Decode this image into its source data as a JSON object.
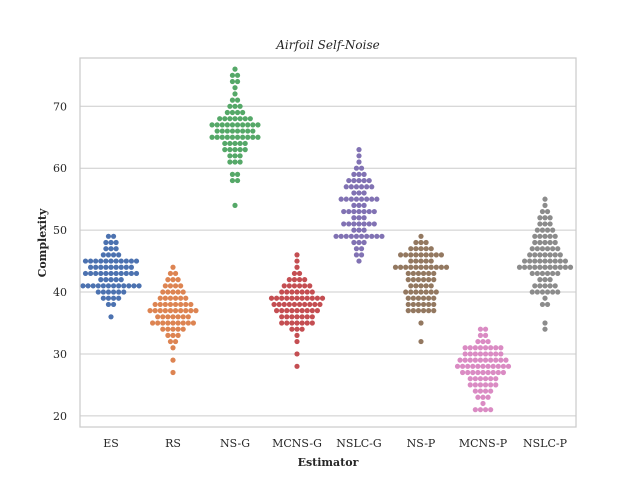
{
  "chart_data": {
    "type": "scatter",
    "subtype": "swarm",
    "title": "Airfoil Self-Noise",
    "xlabel": "Estimator",
    "ylabel": "Complexity",
    "categories": [
      "ES",
      "RS",
      "NS-G",
      "MCNS-G",
      "NSLC-G",
      "NS-P",
      "MCNS-P",
      "NSLC-P"
    ],
    "yticks": [
      20,
      30,
      40,
      50,
      60,
      70
    ],
    "ylim": [
      18.2,
      77.8
    ],
    "grid": "y",
    "legend": "none",
    "colors": [
      "#4c72b0",
      "#dd8452",
      "#55a868",
      "#c44e52",
      "#8172b3",
      "#937860",
      "#da8bc3",
      "#8c8c8c"
    ],
    "series": [
      {
        "category": "ES",
        "values": [
          36,
          38,
          38,
          39,
          39,
          39,
          39,
          40,
          40,
          40,
          40,
          40,
          40,
          41,
          41,
          41,
          41,
          41,
          41,
          41,
          41,
          41,
          41,
          41,
          41,
          42,
          42,
          42,
          42,
          42,
          43,
          43,
          43,
          43,
          43,
          43,
          43,
          43,
          43,
          43,
          43,
          44,
          44,
          44,
          44,
          44,
          44,
          44,
          44,
          44,
          45,
          45,
          45,
          45,
          45,
          45,
          45,
          45,
          45,
          45,
          45,
          46,
          46,
          46,
          46,
          47,
          47,
          47,
          48,
          48,
          48,
          49,
          49
        ]
      },
      {
        "category": "RS",
        "values": [
          27,
          29,
          31,
          32,
          32,
          33,
          33,
          33,
          34,
          34,
          34,
          34,
          34,
          35,
          35,
          35,
          35,
          35,
          35,
          35,
          35,
          35,
          36,
          36,
          36,
          36,
          36,
          36,
          36,
          37,
          37,
          37,
          37,
          37,
          37,
          37,
          37,
          37,
          37,
          38,
          38,
          38,
          38,
          38,
          38,
          38,
          38,
          39,
          39,
          39,
          39,
          39,
          39,
          40,
          40,
          40,
          40,
          40,
          41,
          41,
          41,
          41,
          42,
          42,
          42,
          43,
          43,
          44
        ]
      },
      {
        "category": "NS-G",
        "values": [
          54,
          58,
          58,
          59,
          59,
          61,
          61,
          61,
          62,
          62,
          62,
          63,
          63,
          63,
          63,
          63,
          64,
          64,
          64,
          64,
          64,
          65,
          65,
          65,
          65,
          65,
          65,
          65,
          65,
          65,
          65,
          66,
          66,
          66,
          66,
          66,
          66,
          66,
          66,
          67,
          67,
          67,
          67,
          67,
          67,
          67,
          67,
          67,
          67,
          68,
          68,
          68,
          68,
          68,
          68,
          68,
          69,
          69,
          69,
          69,
          70,
          70,
          70,
          71,
          71,
          72,
          73,
          74,
          74,
          75,
          75,
          76
        ]
      },
      {
        "category": "MCNS-G",
        "values": [
          28,
          30,
          32,
          33,
          34,
          34,
          34,
          35,
          35,
          35,
          35,
          35,
          35,
          35,
          36,
          36,
          36,
          36,
          36,
          36,
          36,
          37,
          37,
          37,
          37,
          37,
          37,
          37,
          37,
          37,
          38,
          38,
          38,
          38,
          38,
          38,
          38,
          38,
          38,
          38,
          39,
          39,
          39,
          39,
          39,
          39,
          39,
          39,
          39,
          39,
          39,
          40,
          40,
          40,
          40,
          40,
          40,
          40,
          41,
          41,
          41,
          41,
          41,
          41,
          42,
          42,
          42,
          42,
          43,
          43,
          44,
          45,
          46
        ]
      },
      {
        "category": "NSLC-G",
        "values": [
          45,
          46,
          46,
          47,
          47,
          48,
          48,
          48,
          49,
          49,
          49,
          49,
          49,
          49,
          49,
          49,
          49,
          49,
          50,
          50,
          50,
          51,
          51,
          51,
          51,
          51,
          51,
          51,
          52,
          52,
          52,
          53,
          53,
          53,
          53,
          53,
          53,
          53,
          54,
          54,
          54,
          55,
          55,
          55,
          55,
          55,
          55,
          55,
          55,
          56,
          56,
          56,
          57,
          57,
          57,
          57,
          57,
          57,
          58,
          58,
          58,
          58,
          58,
          59,
          59,
          59,
          60,
          60,
          61,
          62,
          63
        ]
      },
      {
        "category": "NS-P",
        "values": [
          32,
          35,
          37,
          37,
          37,
          37,
          37,
          37,
          38,
          38,
          38,
          38,
          38,
          38,
          39,
          39,
          39,
          39,
          39,
          39,
          40,
          40,
          40,
          40,
          40,
          40,
          40,
          41,
          41,
          41,
          41,
          41,
          42,
          42,
          42,
          42,
          42,
          42,
          43,
          43,
          43,
          43,
          43,
          43,
          44,
          44,
          44,
          44,
          44,
          44,
          44,
          44,
          44,
          44,
          44,
          45,
          45,
          45,
          45,
          45,
          46,
          46,
          46,
          46,
          46,
          46,
          46,
          46,
          46,
          47,
          47,
          47,
          47,
          47,
          48,
          48,
          48,
          49
        ]
      },
      {
        "category": "MCNS-P",
        "values": [
          21,
          21,
          21,
          21,
          22,
          23,
          23,
          23,
          24,
          24,
          24,
          24,
          25,
          25,
          25,
          25,
          25,
          25,
          26,
          26,
          26,
          26,
          26,
          26,
          27,
          27,
          27,
          27,
          27,
          27,
          27,
          27,
          27,
          28,
          28,
          28,
          28,
          28,
          28,
          28,
          28,
          28,
          28,
          28,
          29,
          29,
          29,
          29,
          29,
          29,
          29,
          29,
          29,
          29,
          30,
          30,
          30,
          30,
          30,
          30,
          30,
          30,
          31,
          31,
          31,
          31,
          31,
          31,
          31,
          31,
          32,
          32,
          32,
          33,
          33,
          34,
          34
        ]
      },
      {
        "category": "NSLC-P",
        "values": [
          34,
          35,
          38,
          38,
          39,
          40,
          40,
          40,
          40,
          40,
          40,
          41,
          41,
          41,
          41,
          41,
          42,
          42,
          42,
          43,
          43,
          43,
          43,
          43,
          43,
          44,
          44,
          44,
          44,
          44,
          44,
          44,
          44,
          44,
          44,
          44,
          45,
          45,
          45,
          45,
          45,
          45,
          45,
          45,
          45,
          46,
          46,
          46,
          46,
          46,
          46,
          46,
          47,
          47,
          47,
          47,
          47,
          47,
          48,
          48,
          48,
          48,
          48,
          49,
          49,
          49,
          49,
          49,
          50,
          50,
          50,
          50,
          51,
          51,
          51,
          52,
          52,
          52,
          53,
          53,
          54,
          55
        ]
      }
    ]
  }
}
